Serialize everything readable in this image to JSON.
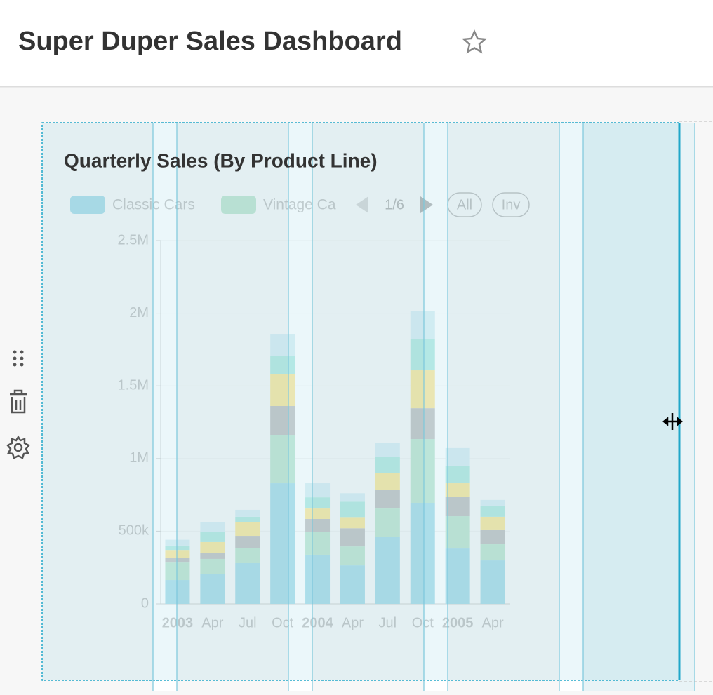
{
  "header": {
    "title": "Super Duper Sales Dashboard"
  },
  "chart_data": {
    "type": "stacked-bar",
    "title": "Quarterly Sales (By Product Line)",
    "categories": [
      "2003",
      "Apr",
      "Jul",
      "Oct",
      "2004",
      "Apr",
      "Jul",
      "Oct",
      "2005",
      "Apr"
    ],
    "bold_categories": [
      "2003",
      "2004",
      "2005"
    ],
    "series": [
      {
        "name": "Classic Cars",
        "color": "#1fa8c9",
        "values": [
          164000,
          203000,
          280000,
          830000,
          338000,
          265000,
          463000,
          695000,
          381000,
          299000
        ]
      },
      {
        "name": "Vintage Ca",
        "color": "#5ac189",
        "values": [
          120000,
          106000,
          106000,
          333000,
          159000,
          130000,
          193000,
          439000,
          222000,
          111000
        ]
      },
      {
        "color": "#666666",
        "values": [
          34000,
          39000,
          82000,
          198000,
          87000,
          125000,
          130000,
          212000,
          135000,
          97000
        ]
      },
      {
        "color": "#fcc700",
        "values": [
          53000,
          77000,
          92000,
          222000,
          72000,
          77000,
          116000,
          261000,
          92000,
          92000
        ]
      },
      {
        "color": "#3cccb4",
        "values": [
          30000,
          68000,
          39000,
          125000,
          77000,
          106000,
          111000,
          217000,
          121000,
          77000
        ]
      },
      {
        "color": "#a1d9e8",
        "values": [
          40000,
          68000,
          48000,
          150000,
          97000,
          58000,
          97000,
          193000,
          121000,
          39000
        ]
      }
    ],
    "legend_controls": {
      "page": "1/6",
      "all": "All",
      "invert": "Inv"
    },
    "ylim": [
      0,
      2500000
    ],
    "yticks": [
      {
        "value": 0,
        "label": "0"
      },
      {
        "value": 500000,
        "label": "500k"
      },
      {
        "value": 1000000,
        "label": "1M"
      },
      {
        "value": 1500000,
        "label": "1.5M"
      },
      {
        "value": 2000000,
        "label": "2M"
      },
      {
        "value": 2500000,
        "label": "2.5M"
      }
    ],
    "grid": true
  }
}
